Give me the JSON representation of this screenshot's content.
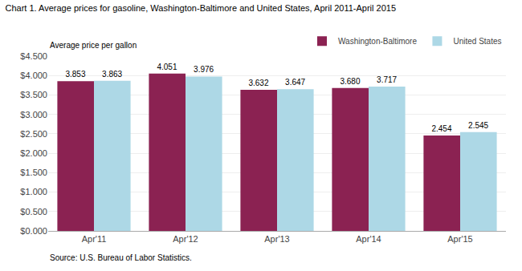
{
  "chart_data": {
    "type": "bar",
    "title": "Chart 1. Average prices for gasoline, Washington-Baltimore and United States, April 2011-April 2015",
    "ylabel": "Average price per gallon",
    "annotations": [
      "Source: U.S. Bureau of Labor Statistics."
    ],
    "categories": [
      "Apr'11",
      "Apr'12",
      "Apr'13",
      "Apr'14",
      "Apr'15"
    ],
    "series": [
      {
        "name": "Washington-Baltimore",
        "color": "#8B2252",
        "values": [
          3.853,
          4.051,
          3.632,
          3.68,
          2.454
        ],
        "value_labels": [
          "3.853",
          "4.051",
          "3.632",
          "3.680",
          "2.454"
        ]
      },
      {
        "name": "United States",
        "color": "#ADD8E6",
        "values": [
          3.863,
          3.976,
          3.647,
          3.717,
          2.545
        ],
        "value_labels": [
          "3.863",
          "3.976",
          "3.647",
          "3.717",
          "2.545"
        ]
      }
    ],
    "ylim": [
      0,
      4.5
    ],
    "yticks": [
      {
        "value": 0.0,
        "label": "$0.000"
      },
      {
        "value": 0.5,
        "label": "$0.500"
      },
      {
        "value": 1.0,
        "label": "$1.000"
      },
      {
        "value": 1.5,
        "label": "$1.500"
      },
      {
        "value": 2.0,
        "label": "$2.000"
      },
      {
        "value": 2.5,
        "label": "$2.500"
      },
      {
        "value": 3.0,
        "label": "$3.000"
      },
      {
        "value": 3.5,
        "label": "$3.500"
      },
      {
        "value": 4.0,
        "label": "$4.000"
      },
      {
        "value": 4.5,
        "label": "$4.500"
      }
    ],
    "grid": true,
    "legend": "upper right",
    "data_labels": true
  }
}
